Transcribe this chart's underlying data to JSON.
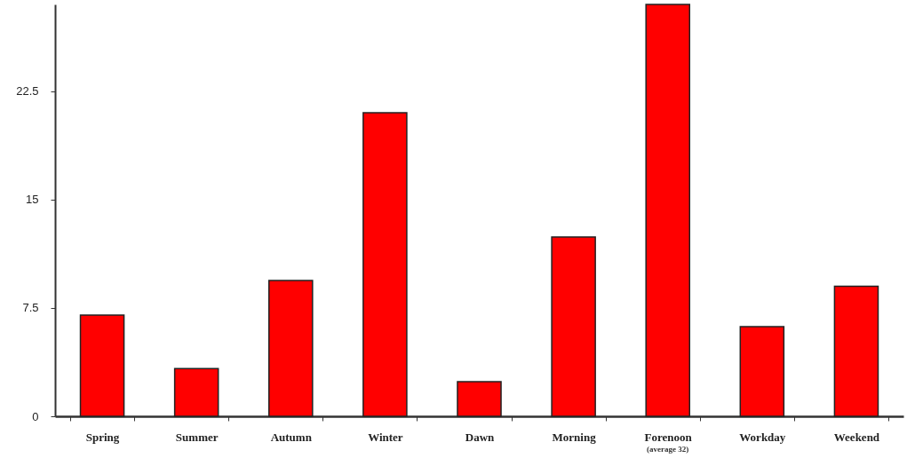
{
  "chart_data": {
    "type": "bar",
    "categories": [
      "Spring",
      "Summer",
      "Autumn",
      "Winter",
      "Dawn",
      "Morning",
      "Forenoon",
      "Workday",
      "Weekend"
    ],
    "values": [
      7.0,
      3.3,
      9.4,
      21.0,
      2.4,
      12.4,
      28.5,
      6.2,
      9.0
    ],
    "color": "#ff0000",
    "ylim": [
      0,
      28.5
    ],
    "yticks": [
      0,
      7.5,
      15,
      22.5
    ],
    "grid": false,
    "annotations": [
      "(average 32)"
    ]
  }
}
